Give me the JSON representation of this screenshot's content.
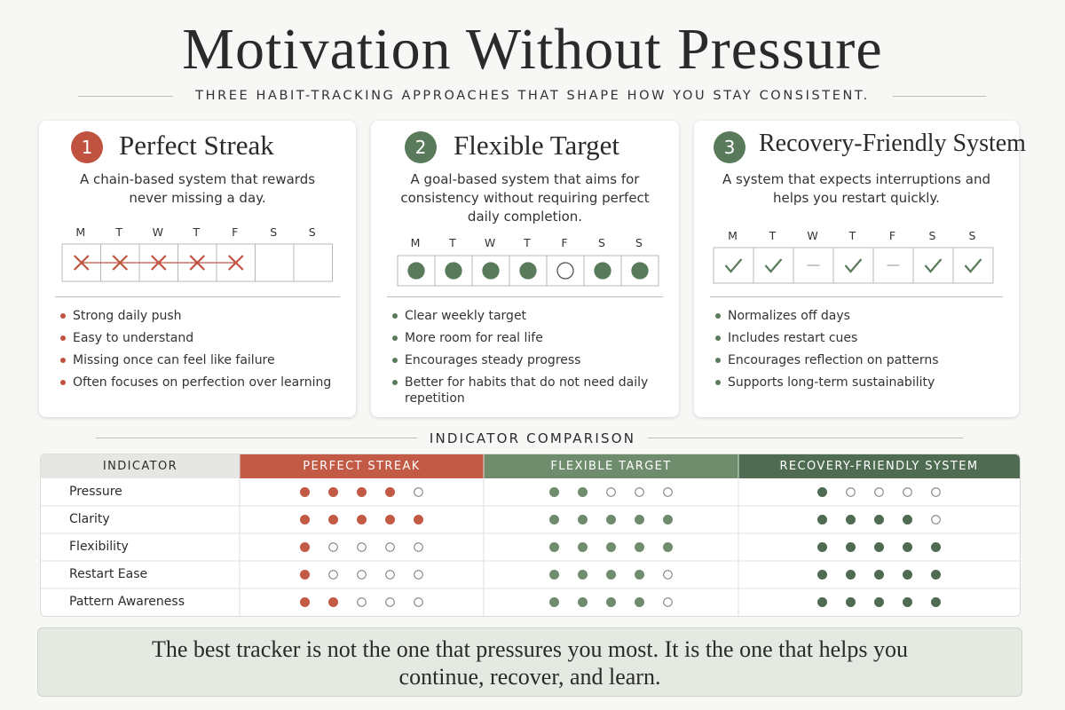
{
  "header": {
    "title": "Motivation Without Pressure",
    "subtitle": "THREE HABIT-TRACKING APPROACHES THAT SHAPE HOW YOU STAY CONSISTENT."
  },
  "cards": [
    {
      "number": 1,
      "title": "Perfect Streak",
      "description": "A chain-based system that rewards never missing a day.",
      "color": "#c0533f",
      "mark": "cross",
      "days": [
        "M",
        "T",
        "W",
        "T",
        "F",
        "S",
        "S"
      ],
      "done": [
        true,
        true,
        true,
        true,
        true,
        false,
        false
      ],
      "points": [
        "Strong daily push",
        "Easy to understand",
        "Missing once can feel like failure",
        "Often focuses on perfection over learning"
      ]
    },
    {
      "number": 2,
      "title": "Flexible Target",
      "description": "A goal-based system that aims for consistency without requiring perfect daily completion.",
      "color": "#5a7a5c",
      "mark": "dot",
      "days": [
        "M",
        "T",
        "W",
        "T",
        "F",
        "S",
        "S"
      ],
      "done": [
        true,
        true,
        true,
        true,
        false,
        true,
        true
      ],
      "points": [
        "Clear weekly target",
        "More room for real life",
        "Encourages steady progress",
        "Better for habits that do not need daily repetition"
      ]
    },
    {
      "number": 3,
      "title": "Recovery-Friendly System",
      "description": "A system that expects interruptions and helps you restart quickly.",
      "color": "#5a7a5c",
      "mark": "check",
      "days": [
        "M",
        "T",
        "W",
        "T",
        "F",
        "S",
        "S"
      ],
      "done": [
        true,
        true,
        false,
        true,
        false,
        true,
        true
      ],
      "points": [
        "Normalizes off days",
        "Includes restart cues",
        "Encourages reflection on patterns",
        "Supports long-term sustainability"
      ]
    }
  ],
  "comparison": {
    "title": "INDICATOR COMPARISON",
    "header": "INDICATOR",
    "scale": 5,
    "indicators": [
      "Pressure",
      "Clarity",
      "Flexibility",
      "Restart Ease",
      "Pattern Awareness"
    ],
    "systems": [
      {
        "name": "PERFECT STREAK",
        "color": "#c25a45",
        "ratings": [
          4,
          5,
          1,
          1,
          2
        ]
      },
      {
        "name": "FLEXIBLE TARGET",
        "color": "#6f8c6d",
        "ratings": [
          2,
          5,
          5,
          4,
          4
        ]
      },
      {
        "name": "RECOVERY-FRIENDLY SYSTEM",
        "color": "#4f6b52",
        "ratings": [
          1,
          4,
          5,
          5,
          5
        ]
      }
    ]
  },
  "footer": {
    "quote": "The best tracker is not the one that pressures you most. It is the one that helps you continue, recover, and learn."
  }
}
